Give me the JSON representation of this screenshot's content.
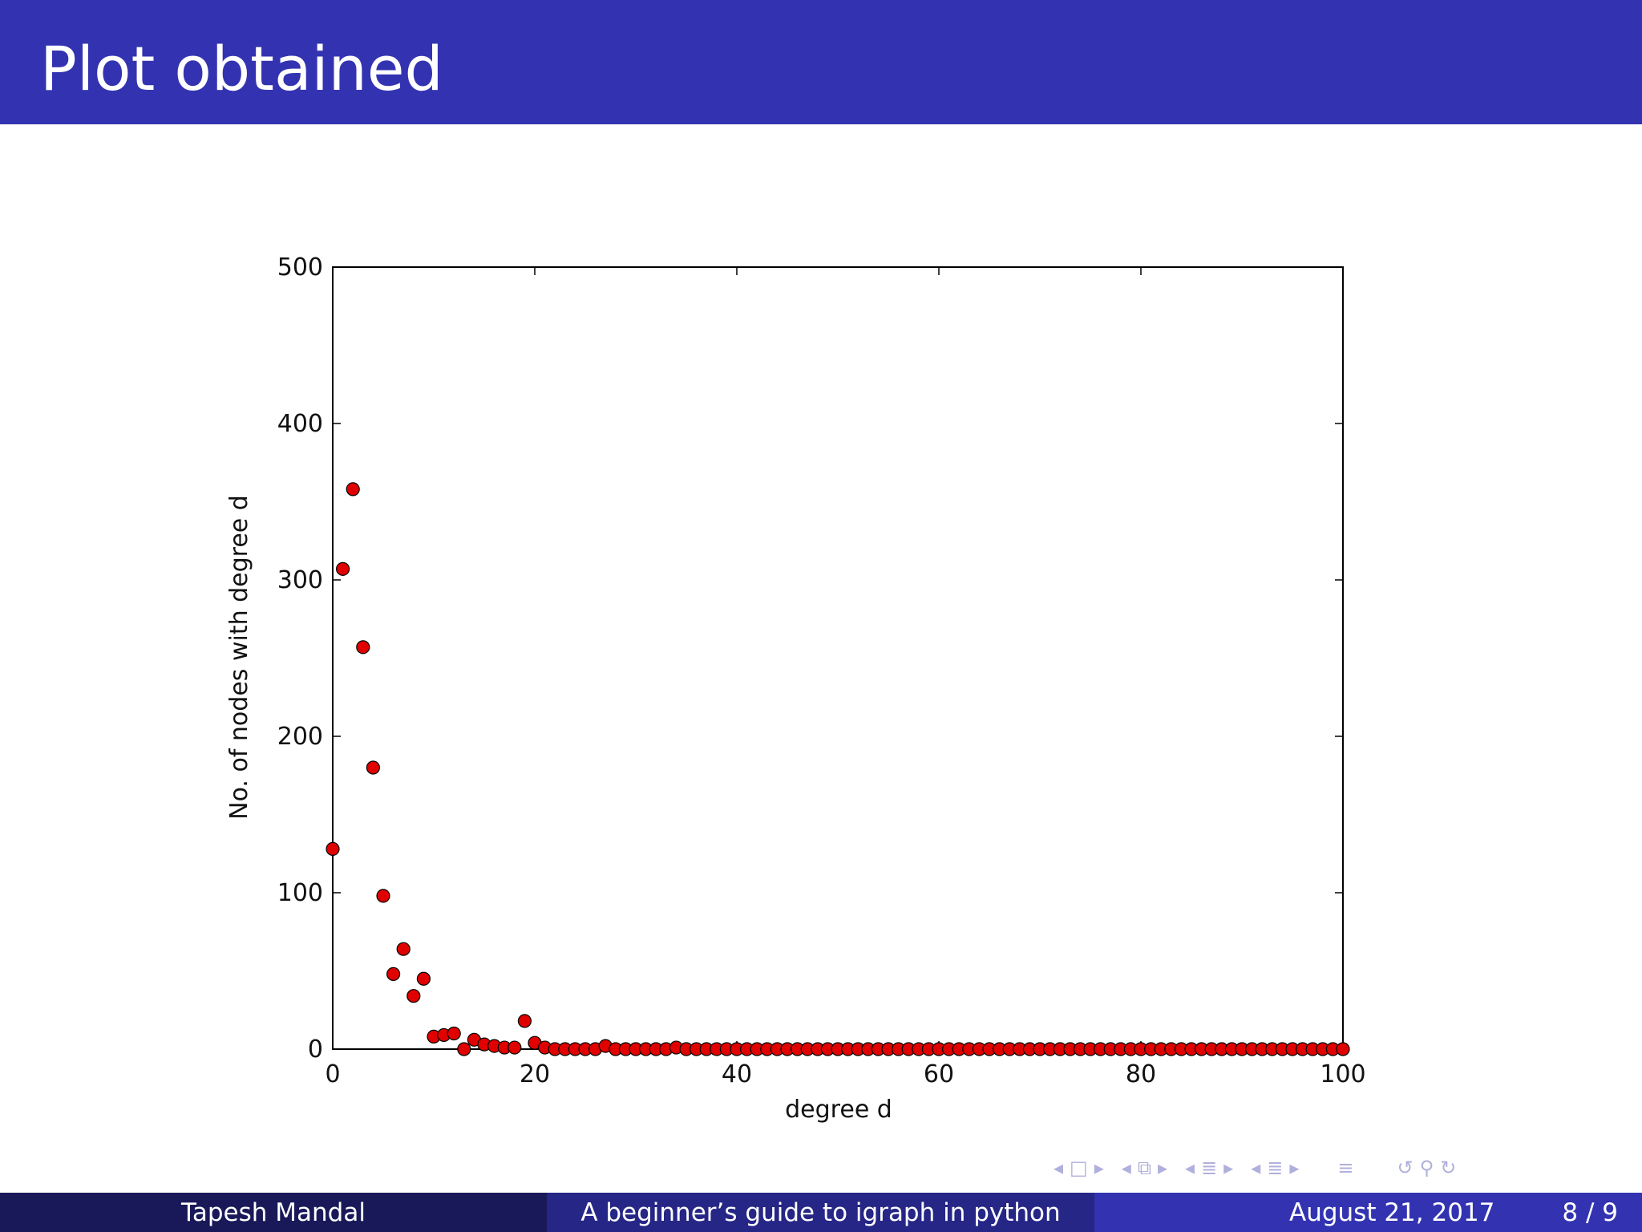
{
  "slide": {
    "title": "Plot obtained",
    "header_color": "#3333b2"
  },
  "footer": {
    "author": "Tapesh Mandal",
    "talk_title": "A beginner’s guide to igraph in python",
    "date": "August 21, 2017",
    "page": "8 / 9"
  },
  "nav_icons": [
    "arrow-left-icon",
    "frame-icon",
    "arrow-right-icon",
    "arrow-left-icon",
    "subsection-icon",
    "arrow-right-icon",
    "arrow-left-icon",
    "section-icon",
    "arrow-right-icon",
    "arrow-left-icon",
    "doc-icon",
    "arrow-right-icon",
    "align-icon",
    "undo-icon",
    "search-icon",
    "redo-icon"
  ],
  "chart_data": {
    "type": "scatter",
    "title": "",
    "xlabel": "degree d",
    "ylabel": "No. of nodes with degree d",
    "xlim": [
      0,
      100
    ],
    "ylim": [
      0,
      500
    ],
    "xticks": [
      0,
      20,
      40,
      60,
      80,
      100
    ],
    "yticks": [
      0,
      100,
      200,
      300,
      400,
      500
    ],
    "grid": false,
    "marker_color": "#e00000",
    "series": [
      {
        "x": [
          0,
          1,
          2,
          3,
          4,
          5,
          6,
          7,
          8,
          9,
          10,
          11,
          12,
          13,
          14,
          15,
          16,
          17,
          18,
          19,
          20,
          21,
          22,
          23,
          24,
          25,
          26,
          27,
          28,
          29,
          30,
          31,
          32,
          33,
          34,
          35,
          36,
          37,
          38,
          39,
          40,
          41,
          42,
          43,
          44,
          45,
          46,
          47,
          48,
          49,
          50,
          51,
          52,
          53,
          54,
          55,
          56,
          57,
          58,
          59,
          60,
          61,
          62,
          63,
          64,
          65,
          66,
          67,
          68,
          69,
          70,
          71,
          72,
          73,
          74,
          75,
          76,
          77,
          78,
          79,
          80,
          81,
          82,
          83,
          84,
          85,
          86,
          87,
          88,
          89,
          90,
          91,
          92,
          93,
          94,
          95,
          96,
          97,
          98,
          99,
          100
        ],
        "y": [
          128,
          307,
          358,
          257,
          180,
          98,
          48,
          64,
          34,
          45,
          8,
          9,
          10,
          0,
          6,
          3,
          2,
          1,
          1,
          18,
          4,
          1,
          0,
          0,
          0,
          0,
          0,
          2,
          0,
          0,
          0,
          0,
          0,
          0,
          1,
          0,
          0,
          0,
          0,
          0,
          0,
          0,
          0,
          0,
          0,
          0,
          0,
          0,
          0,
          0,
          0,
          0,
          0,
          0,
          0,
          0,
          0,
          0,
          0,
          0,
          0,
          0,
          0,
          0,
          0,
          0,
          0,
          0,
          0,
          0,
          0,
          0,
          0,
          0,
          0,
          0,
          0,
          0,
          0,
          0,
          0,
          0,
          0,
          0,
          0,
          0,
          0,
          0,
          0,
          0,
          0,
          0,
          0,
          0,
          0,
          0,
          0,
          0,
          0,
          0,
          0
        ]
      }
    ]
  }
}
